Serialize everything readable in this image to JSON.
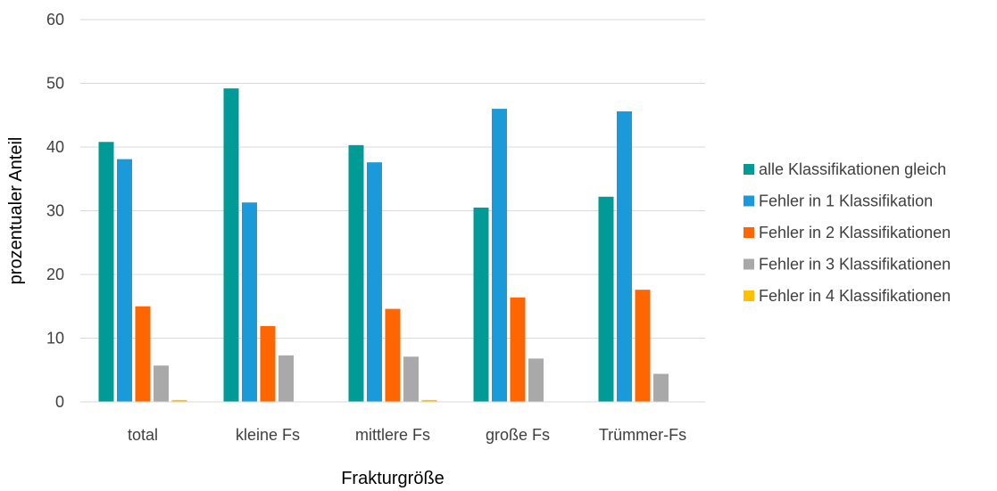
{
  "chart_data": {
    "type": "bar",
    "title": "",
    "xlabel": "Frakturgröße",
    "ylabel": "prozentualer Anteil",
    "ylim": [
      0,
      60
    ],
    "yticks": [
      "0",
      "10",
      "20",
      "30",
      "40",
      "50",
      "60"
    ],
    "grid": true,
    "legend_position": "right",
    "categories": [
      "total",
      "kleine Fs",
      "mittlere Fs",
      "große Fs",
      "Trümmer-Fs"
    ],
    "series": [
      {
        "name": "alle Klassifikationen gleich",
        "color": "#009B96",
        "values": [
          40.8,
          49.2,
          40.3,
          30.5,
          32.2
        ]
      },
      {
        "name": "Fehler in 1 Klassifikation",
        "color": "#1B9AD9",
        "values": [
          38.1,
          31.3,
          37.6,
          46.0,
          45.6
        ]
      },
      {
        "name": "Fehler in 2 Klassifikationen",
        "color": "#FF6600",
        "values": [
          15.0,
          11.9,
          14.6,
          16.4,
          17.6
        ]
      },
      {
        "name": "Fehler in 3 Klassifikationen",
        "color": "#A9A9A9",
        "values": [
          5.7,
          7.3,
          7.1,
          6.8,
          4.4
        ]
      },
      {
        "name": "Fehler in 4 Klassifikationen",
        "color": "#FFC000",
        "values": [
          0.3,
          0.0,
          0.3,
          0.0,
          0.0
        ]
      }
    ]
  }
}
